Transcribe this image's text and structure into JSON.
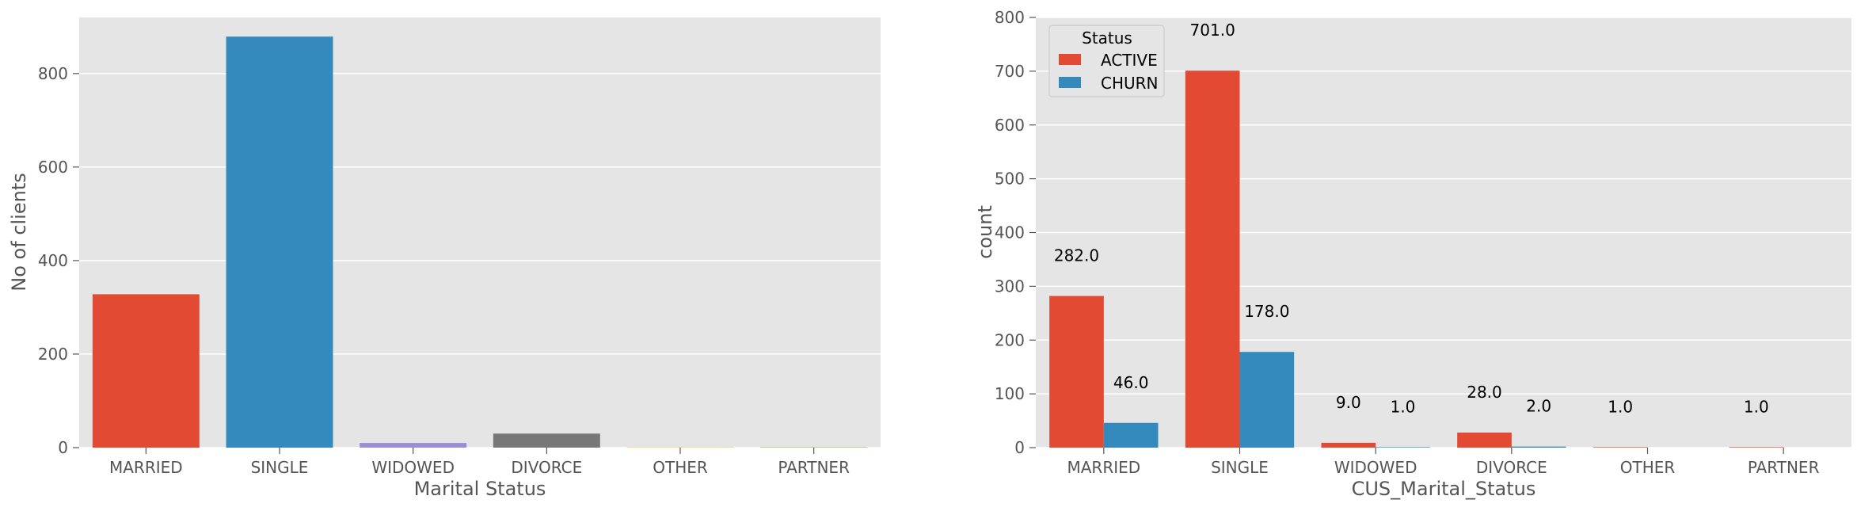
{
  "chart_data": [
    {
      "type": "bar",
      "categories": [
        "MARRIED",
        "SINGLE",
        "WIDOWED",
        "DIVORCE",
        "OTHER",
        "PARTNER"
      ],
      "values": [
        328,
        879,
        10,
        30,
        1,
        1
      ],
      "colors": [
        "#E24A33",
        "#348ABD",
        "#988ED5",
        "#777777",
        "#FBC15E",
        "#8EBA42"
      ],
      "xlabel": "Marital Status",
      "ylabel": "No of clients",
      "ylim": [
        0,
        920
      ],
      "yticks": [
        "0",
        "200",
        "400",
        "600",
        "800"
      ],
      "grid": true
    },
    {
      "type": "bar",
      "categories": [
        "MARRIED",
        "SINGLE",
        "WIDOWED",
        "DIVORCE",
        "OTHER",
        "PARTNER"
      ],
      "series": [
        {
          "name": "ACTIVE",
          "color": "#E24A33",
          "values": [
            282,
            701,
            9,
            28,
            1,
            1
          ]
        },
        {
          "name": "CHURN",
          "color": "#348ABD",
          "values": [
            46,
            178,
            1,
            2,
            0,
            0
          ]
        }
      ],
      "data_labels": [
        [
          {
            "text": "282.0",
            "value": 282
          },
          {
            "text": "46.0",
            "value": 46
          }
        ],
        [
          {
            "text": "701.0",
            "value": 701
          },
          {
            "text": "178.0",
            "value": 178
          }
        ],
        [
          {
            "text": "9.0",
            "value": 9
          },
          {
            "text": "1.0",
            "value": 1
          }
        ],
        [
          {
            "text": "28.0",
            "value": 28
          },
          {
            "text": "2.0",
            "value": 2
          }
        ],
        [
          {
            "text": "1.0",
            "value": 1
          },
          null
        ],
        [
          {
            "text": "1.0",
            "value": 1
          },
          null
        ]
      ],
      "xlabel": "CUS_Marital_Status",
      "ylabel": "count",
      "ylim": [
        0,
        800
      ],
      "yticks": [
        "0",
        "100",
        "200",
        "300",
        "400",
        "500",
        "600",
        "700",
        "800"
      ],
      "legend": {
        "title": "Status",
        "placement": "top-left"
      },
      "grid": true
    }
  ]
}
